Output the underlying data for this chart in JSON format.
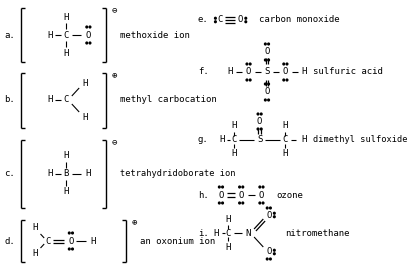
{
  "bg_color": "#ffffff",
  "structures": {
    "a": {
      "label": "a.",
      "name": "methoxide ion",
      "charge": "⊖"
    },
    "b": {
      "label": "b.",
      "name": "methyl carbocation",
      "charge": "⊕"
    },
    "c": {
      "label": "c.",
      "name": "tetrahydridoborate ion",
      "charge": "⊖"
    },
    "d": {
      "label": "d.",
      "name": "an oxonium ion",
      "charge": "⊕"
    },
    "e": {
      "label": "e.",
      "name": "carbon monoxide"
    },
    "f": {
      "label": "f.",
      "name": "sulfuric acid"
    },
    "g": {
      "label": "g.",
      "name": "dimethyl sulfoxide"
    },
    "h": {
      "label": "h.",
      "name": "ozone"
    },
    "i": {
      "label": "i.",
      "name": "nitromethane"
    }
  }
}
